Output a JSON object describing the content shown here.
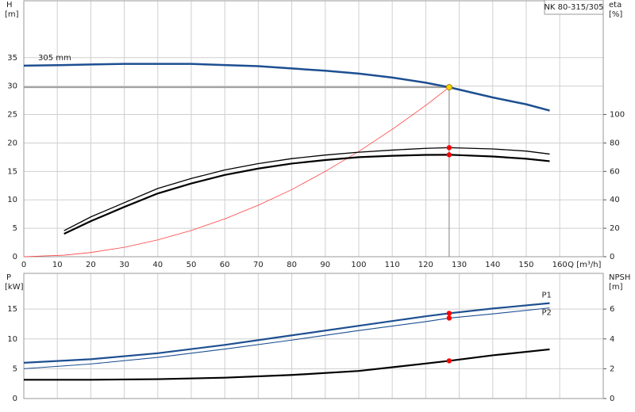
{
  "chart_data": [
    {
      "type": "line",
      "title": "NK 80-315/305",
      "ylabel": "H",
      "yunit": "[m]",
      "y2label": "eta",
      "y2unit": "[%]",
      "xlabel": "Q [m³/h]",
      "xlim": [
        0,
        173
      ],
      "xticks": [
        0,
        10,
        20,
        30,
        40,
        50,
        60,
        70,
        80,
        90,
        100,
        110,
        120,
        130,
        140,
        150,
        160
      ],
      "xtick_labels": true,
      "ylim": [
        0,
        45
      ],
      "yticks": [
        0,
        5,
        10,
        15,
        20,
        25,
        30,
        35
      ],
      "y2lim": [
        0,
        180
      ],
      "y2ticks": [
        0,
        20,
        40,
        60,
        80,
        100
      ],
      "grid": true,
      "duty_point": {
        "x": 127,
        "y": 29.8,
        "color": "#ffd700",
        "line_color": "#a0a0a0"
      },
      "x": [
        0,
        12,
        20,
        30,
        40,
        50,
        60,
        70,
        80,
        90,
        100,
        110,
        120,
        127,
        140,
        150,
        157
      ],
      "series": [
        {
          "name": "305 mm",
          "label_at": "start",
          "color": "#1d4f91",
          "width": 2.5,
          "values": [
            33.6,
            33.7,
            33.8,
            33.9,
            33.9,
            33.9,
            33.7,
            33.5,
            33.1,
            32.7,
            32.2,
            31.5,
            30.6,
            29.8,
            28.0,
            26.8,
            25.7
          ]
        },
        {
          "color": "#ff4040",
          "width": 0.8,
          "values": [
            0,
            0.27,
            0.74,
            1.66,
            2.96,
            4.62,
            6.65,
            9.05,
            11.8,
            15.0,
            18.5,
            22.4,
            26.6,
            29.8,
            null,
            null,
            null
          ]
        },
        {
          "color": "#000000",
          "width": 1.3,
          "axis": "y2",
          "marker_color": "#ff0000",
          "values": [
            null,
            18.3,
            28,
            38,
            48,
            55,
            61,
            65.5,
            69,
            71.5,
            73.5,
            75,
            76.2,
            76.7,
            75.8,
            74.3,
            72.2
          ]
        },
        {
          "color": "#000000",
          "width": 2.2,
          "axis": "y2",
          "marker_color": "#ff0000",
          "values": [
            null,
            16.1,
            25,
            35,
            44.5,
            51.5,
            57.5,
            62,
            65.5,
            68,
            70,
            71,
            71.6,
            71.7,
            70.5,
            68.9,
            67.2
          ]
        }
      ]
    },
    {
      "type": "line",
      "ylabel": "P",
      "yunit": "[kW]",
      "y2label": "NPSH",
      "y2unit": "[m]",
      "xlim": [
        0,
        173
      ],
      "xticks": [
        0,
        10,
        20,
        30,
        40,
        50,
        60,
        70,
        80,
        90,
        100,
        110,
        120,
        130,
        140,
        150,
        160
      ],
      "xtick_labels": false,
      "ylim": [
        0,
        21
      ],
      "yticks": [
        0,
        5,
        10,
        15
      ],
      "y2lim": [
        0,
        8.4
      ],
      "y2ticks": [
        0,
        2,
        4,
        6
      ],
      "grid": true,
      "x": [
        0,
        20,
        40,
        60,
        80,
        100,
        120,
        127,
        140,
        157
      ],
      "series": [
        {
          "name": "P1",
          "label_at": "end-above",
          "color": "#1d4f91",
          "width": 2.2,
          "marker_color": "#ff0000",
          "values": [
            6.0,
            6.6,
            7.6,
            9.0,
            10.6,
            12.2,
            13.8,
            14.3,
            15.1,
            16.0
          ]
        },
        {
          "name": "P2",
          "label_at": "end-below",
          "color": "#1d4f91",
          "width": 1.1,
          "marker_color": "#ff0000",
          "values": [
            5.0,
            5.8,
            6.9,
            8.3,
            9.8,
            11.4,
            12.9,
            13.5,
            14.2,
            15.2
          ]
        },
        {
          "color": "#000000",
          "width": 2.2,
          "axis": "y2",
          "marker_color": "#ff0000",
          "values": [
            1.26,
            1.26,
            1.3,
            1.4,
            1.58,
            1.85,
            2.35,
            2.53,
            2.9,
            3.3
          ]
        }
      ]
    }
  ]
}
